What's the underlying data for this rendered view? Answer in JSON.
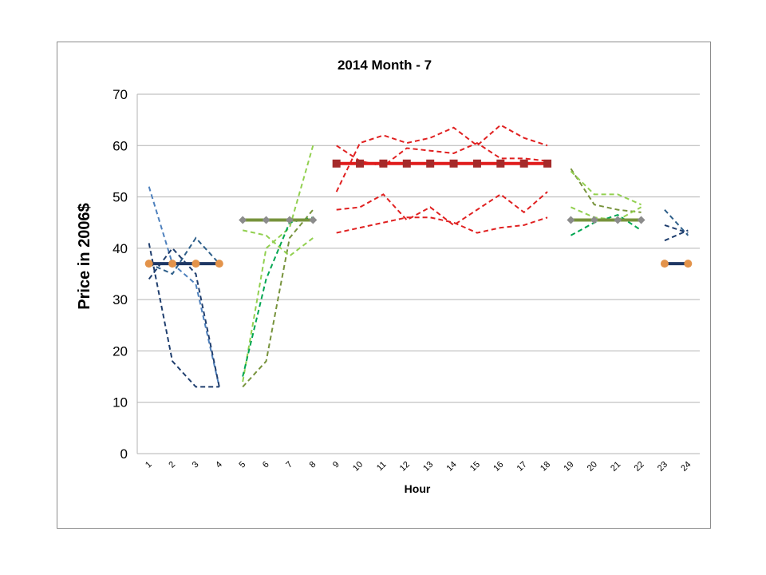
{
  "chart_data": {
    "type": "line",
    "title": "2014 Month - 7",
    "xlabel": "Hour",
    "ylabel": "Price in 2006$",
    "ylim": [
      0,
      70
    ],
    "yticks": [
      0,
      10,
      20,
      30,
      40,
      50,
      60,
      70
    ],
    "categories": [
      "1",
      "2",
      "3",
      "4",
      "5",
      "6",
      "7",
      "8",
      "9",
      "10",
      "11",
      "12",
      "13",
      "14",
      "15",
      "16",
      "17",
      "18",
      "19",
      "20",
      "21",
      "22",
      "23",
      "24"
    ],
    "grid": true,
    "legend": "none",
    "colors": {
      "block1": "#1f3864",
      "block1_marker": "#e3934a",
      "block2": "#77933c",
      "block3": "#e01b1b",
      "block3_marker": "#a52a2a",
      "block4": "#77933c",
      "marker_gray": "#8c8c8c",
      "grid": "#b3b3b3",
      "dash_blue_dark": "#1f3e6e",
      "dash_blue_mid": "#2e5f8a",
      "dash_blue_light": "#4f81bd",
      "dash_green_light": "#92d050",
      "dash_green_olive": "#77933c",
      "dash_green_teal": "#00a651",
      "dash_red": "#e02020"
    },
    "average_blocks": [
      {
        "hours": [
          1,
          2,
          3,
          4
        ],
        "value": 37,
        "color": "#1f3864",
        "marker": "circle",
        "marker_color": "#e3934a"
      },
      {
        "hours": [
          5,
          6,
          7,
          8
        ],
        "value": 45.5,
        "color": "#77933c",
        "marker": "diamond",
        "marker_color": "#8c8c8c"
      },
      {
        "hours": [
          9,
          10,
          11,
          12,
          13,
          14,
          15,
          16,
          17,
          18
        ],
        "value": 56.5,
        "color": "#e01b1b",
        "marker": "square",
        "marker_color": "#a52a2a"
      },
      {
        "hours": [
          19,
          20,
          21,
          22
        ],
        "value": 45.5,
        "color": "#77933c",
        "marker": "diamond",
        "marker_color": "#8c8c8c"
      },
      {
        "hours": [
          23,
          24
        ],
        "value": 37,
        "color": "#1f3864",
        "marker": "circle",
        "marker_color": "#e3934a"
      }
    ],
    "dashed_series": [
      {
        "x": [
          1,
          2,
          3,
          4
        ],
        "values": [
          52,
          37,
          33,
          13
        ],
        "color": "#4f81bd"
      },
      {
        "x": [
          1,
          2,
          3,
          4
        ],
        "values": [
          41,
          18,
          13,
          13
        ],
        "color": "#1f3e6e"
      },
      {
        "x": [
          1,
          2,
          3,
          4
        ],
        "values": [
          34,
          40,
          35,
          13
        ],
        "color": "#1f3e6e"
      },
      {
        "x": [
          1,
          2,
          3,
          4
        ],
        "values": [
          37,
          35,
          42,
          37
        ],
        "color": "#2e5f8a"
      },
      {
        "x": [
          5,
          6,
          7,
          8
        ],
        "values": [
          14,
          40,
          44,
          60
        ],
        "color": "#92d050"
      },
      {
        "x": [
          5,
          6,
          7,
          8
        ],
        "values": [
          13,
          18,
          42,
          47.5
        ],
        "color": "#77933c"
      },
      {
        "x": [
          5,
          6,
          7,
          8
        ],
        "values": [
          15,
          34,
          45,
          46
        ],
        "color": "#00a651"
      },
      {
        "x": [
          5,
          6,
          7,
          8
        ],
        "values": [
          43.5,
          42.5,
          38.5,
          42
        ],
        "color": "#92d050"
      },
      {
        "x": [
          9,
          10,
          11,
          12,
          13,
          14,
          15,
          16,
          17,
          18
        ],
        "values": [
          60,
          57,
          56,
          59.5,
          59,
          58.5,
          60.5,
          57.5,
          57.5,
          57
        ],
        "color": "#e02020"
      },
      {
        "x": [
          9,
          10,
          11,
          12,
          13,
          14,
          15,
          16,
          17,
          18
        ],
        "values": [
          51,
          60.5,
          62,
          60.5,
          61.5,
          63.5,
          60,
          64,
          61.5,
          60
        ],
        "color": "#e02020"
      },
      {
        "x": [
          9,
          10,
          11,
          12,
          13,
          14,
          15,
          16,
          17,
          18
        ],
        "values": [
          47.5,
          48,
          50.5,
          45.5,
          48,
          44.5,
          47.5,
          50.5,
          47,
          51
        ],
        "color": "#e02020"
      },
      {
        "x": [
          9,
          10,
          11,
          12,
          13,
          14,
          15,
          16,
          17,
          18
        ],
        "values": [
          43,
          44,
          45,
          46,
          46,
          45,
          43,
          44,
          44.5,
          46
        ],
        "color": "#e02020"
      },
      {
        "x": [
          19,
          20,
          21,
          22
        ],
        "values": [
          55.5,
          48.5,
          47.5,
          47
        ],
        "color": "#77933c"
      },
      {
        "x": [
          19,
          20,
          21,
          22
        ],
        "values": [
          55,
          50.5,
          50.5,
          48.5
        ],
        "color": "#92d050"
      },
      {
        "x": [
          19,
          20,
          21,
          22
        ],
        "values": [
          48,
          46,
          45.5,
          48
        ],
        "color": "#92d050"
      },
      {
        "x": [
          19,
          20,
          21,
          22
        ],
        "values": [
          42.5,
          45,
          46.5,
          43.5
        ],
        "color": "#00a651"
      },
      {
        "x": [
          23,
          24
        ],
        "values": [
          47.5,
          42.5
        ],
        "color": "#2e5f8a"
      },
      {
        "x": [
          23,
          24
        ],
        "values": [
          44.5,
          43
        ],
        "color": "#1f3e6e"
      },
      {
        "x": [
          23,
          24
        ],
        "values": [
          41.5,
          43.5
        ],
        "color": "#1f3e6e"
      }
    ]
  }
}
